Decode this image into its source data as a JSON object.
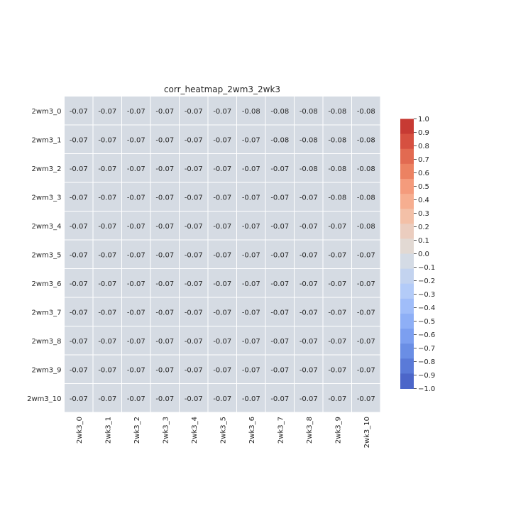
{
  "chart_data": {
    "type": "heatmap",
    "title": "corr_heatmap_2wm3_2wk3",
    "xlabel": "",
    "ylabel": "",
    "rows": [
      "2wm3_0",
      "2wm3_1",
      "2wm3_2",
      "2wm3_3",
      "2wm3_4",
      "2wm3_5",
      "2wm3_6",
      "2wm3_7",
      "2wm3_8",
      "2wm3_9",
      "2wm3_10"
    ],
    "columns": [
      "2wk3_0",
      "2wk3_1",
      "2wk3_2",
      "2wk3_3",
      "2wk3_4",
      "2wk3_5",
      "2wk3_6",
      "2wk3_7",
      "2wk3_8",
      "2wk3_9",
      "2wk3_10"
    ],
    "values": [
      [
        -0.07,
        -0.07,
        -0.07,
        -0.07,
        -0.07,
        -0.07,
        -0.08,
        -0.08,
        -0.08,
        -0.08,
        -0.08
      ],
      [
        -0.07,
        -0.07,
        -0.07,
        -0.07,
        -0.07,
        -0.07,
        -0.07,
        -0.08,
        -0.08,
        -0.08,
        -0.08
      ],
      [
        -0.07,
        -0.07,
        -0.07,
        -0.07,
        -0.07,
        -0.07,
        -0.07,
        -0.07,
        -0.08,
        -0.08,
        -0.08
      ],
      [
        -0.07,
        -0.07,
        -0.07,
        -0.07,
        -0.07,
        -0.07,
        -0.07,
        -0.07,
        -0.07,
        -0.08,
        -0.08
      ],
      [
        -0.07,
        -0.07,
        -0.07,
        -0.07,
        -0.07,
        -0.07,
        -0.07,
        -0.07,
        -0.07,
        -0.07,
        -0.08
      ],
      [
        -0.07,
        -0.07,
        -0.07,
        -0.07,
        -0.07,
        -0.07,
        -0.07,
        -0.07,
        -0.07,
        -0.07,
        -0.07
      ],
      [
        -0.07,
        -0.07,
        -0.07,
        -0.07,
        -0.07,
        -0.07,
        -0.07,
        -0.07,
        -0.07,
        -0.07,
        -0.07
      ],
      [
        -0.07,
        -0.07,
        -0.07,
        -0.07,
        -0.07,
        -0.07,
        -0.07,
        -0.07,
        -0.07,
        -0.07,
        -0.07
      ],
      [
        -0.07,
        -0.07,
        -0.07,
        -0.07,
        -0.07,
        -0.07,
        -0.07,
        -0.07,
        -0.07,
        -0.07,
        -0.07
      ],
      [
        -0.07,
        -0.07,
        -0.07,
        -0.07,
        -0.07,
        -0.07,
        -0.07,
        -0.07,
        -0.07,
        -0.07,
        -0.07
      ],
      [
        -0.07,
        -0.07,
        -0.07,
        -0.07,
        -0.07,
        -0.07,
        -0.07,
        -0.07,
        -0.07,
        -0.07,
        -0.07
      ]
    ],
    "vmin": -1.0,
    "vmax": 1.0,
    "colormap": "coolwarm",
    "colorbar": {
      "ticks": [
        "1.0",
        "0.9",
        "0.8",
        "0.7",
        "0.6",
        "0.5",
        "0.4",
        "0.3",
        "0.2",
        "0.1",
        "0.0",
        "−0.1",
        "−0.2",
        "−0.3",
        "−0.4",
        "−0.5",
        "−0.6",
        "−0.7",
        "−0.8",
        "−0.9",
        "−1.0"
      ],
      "colors_top_to_bottom": [
        "#c73a33",
        "#d65040",
        "#e26a51",
        "#ec8262",
        "#f49b7c",
        "#f6ae90",
        "#f3c0a7",
        "#ebcdbf",
        "#e2d9d3",
        "#d4dbe5",
        "#c3d3ef",
        "#b3cbf8",
        "#a0bdf9",
        "#8eaff6",
        "#7c9ff0",
        "#6a8ee5",
        "#5a7ad8",
        "#4c66c9"
      ]
    },
    "cell_color": "#d5dbe3"
  }
}
